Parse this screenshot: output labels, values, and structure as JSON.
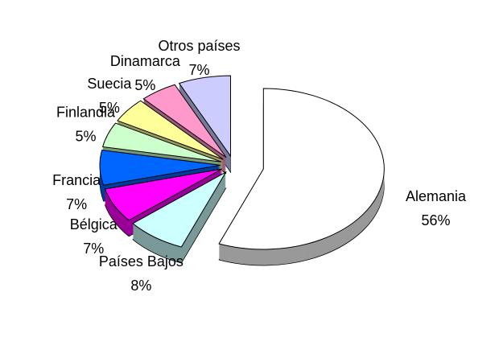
{
  "chart_data": {
    "type": "pie",
    "categories": [
      "Alemania",
      "Países Bajos",
      "Bélgica",
      "Francia",
      "Finlandia",
      "Suecia",
      "Dinamarca",
      "Otros países"
    ],
    "values": [
      56,
      8,
      7,
      7,
      5,
      5,
      5,
      7
    ],
    "value_labels": [
      "56%",
      "8%",
      "7%",
      "7%",
      "5%",
      "5%",
      "5%",
      "7%"
    ],
    "colors": [
      "#ffffff",
      "#ccffff",
      "#ff00ff",
      "#0066ff",
      "#ccffcc",
      "#ffff99",
      "#ff99cc",
      "#ccccff"
    ]
  }
}
